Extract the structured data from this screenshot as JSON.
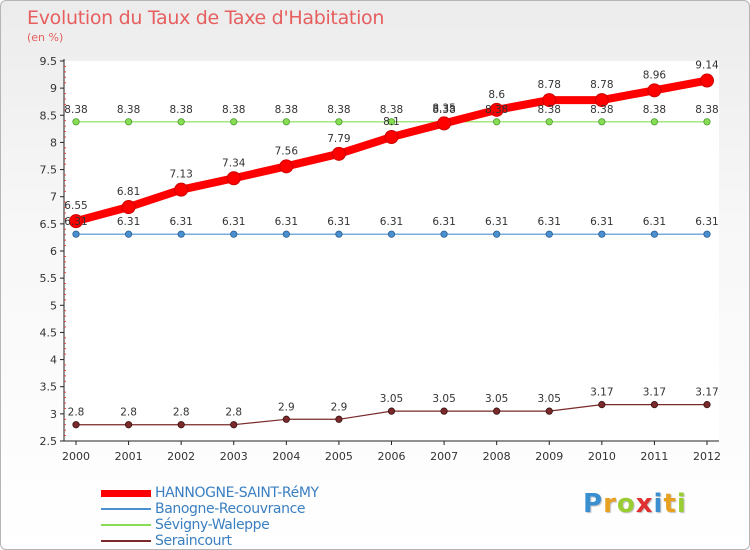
{
  "chart_data": {
    "type": "line",
    "title": "Evolution du Taux de Taxe d'Habitation",
    "ylabel": "(en %)",
    "xlabel": "",
    "x": [
      "2000",
      "2001",
      "2002",
      "2003",
      "2004",
      "2005",
      "2006",
      "2007",
      "2008",
      "2009",
      "2010",
      "2011",
      "2012"
    ],
    "ylim": [
      2.5,
      9.5
    ],
    "yticks": [
      "2.5",
      "3",
      "3.5",
      "4",
      "4.5",
      "5",
      "5.5",
      "6",
      "6.5",
      "7",
      "7.5",
      "8",
      "8.5",
      "9",
      "9.5"
    ],
    "series": [
      {
        "name": "HANNOGNE-SAINT-RéMY",
        "color": "#ff0000",
        "values": [
          6.55,
          6.81,
          7.13,
          7.34,
          7.56,
          7.79,
          8.1,
          8.35,
          8.6,
          8.78,
          8.78,
          8.96,
          9.14
        ],
        "labels": [
          "6.55",
          "6.81",
          "7.13",
          "7.34",
          "7.56",
          "7.79",
          "8.1",
          "8.35",
          "8.6",
          "8.78",
          "8.78",
          "8.96",
          "9.14"
        ]
      },
      {
        "name": "Banogne-Recouvrance",
        "color": "#4a90d0",
        "values": [
          6.31,
          6.31,
          6.31,
          6.31,
          6.31,
          6.31,
          6.31,
          6.31,
          6.31,
          6.31,
          6.31,
          6.31,
          6.31
        ],
        "labels": [
          "6.31",
          "6.31",
          "6.31",
          "6.31",
          "6.31",
          "6.31",
          "6.31",
          "6.31",
          "6.31",
          "6.31",
          "6.31",
          "6.31",
          "6.31"
        ]
      },
      {
        "name": "Sévigny-Waleppe",
        "color": "#88dd55",
        "values": [
          8.38,
          8.38,
          8.38,
          8.38,
          8.38,
          8.38,
          8.38,
          8.38,
          8.38,
          8.38,
          8.38,
          8.38,
          8.38
        ],
        "labels": [
          "8.38",
          "8.38",
          "8.38",
          "8.38",
          "8.38",
          "8.38",
          "8.38",
          "8.38",
          "8.38",
          "8.38",
          "8.38",
          "8.38",
          "8.38"
        ]
      },
      {
        "name": "Seraincourt",
        "color": "#7a2a2a",
        "values": [
          2.8,
          2.8,
          2.8,
          2.8,
          2.9,
          2.9,
          3.05,
          3.05,
          3.05,
          3.05,
          3.17,
          3.17,
          3.17
        ],
        "labels": [
          "2.8",
          "2.8",
          "2.8",
          "2.8",
          "2.9",
          "2.9",
          "3.05",
          "3.05",
          "3.05",
          "3.05",
          "3.17",
          "3.17",
          "3.17"
        ]
      }
    ],
    "grid": false,
    "legend": "bottom-left"
  },
  "logo": {
    "letters": [
      "P",
      "r",
      "o",
      "x",
      "i",
      "t",
      "i"
    ],
    "colors": [
      "#3a8fd0",
      "#e8a020",
      "#9acd32",
      "#e03030",
      "#3a8fd0",
      "#e8a020",
      "#9acd32"
    ]
  }
}
